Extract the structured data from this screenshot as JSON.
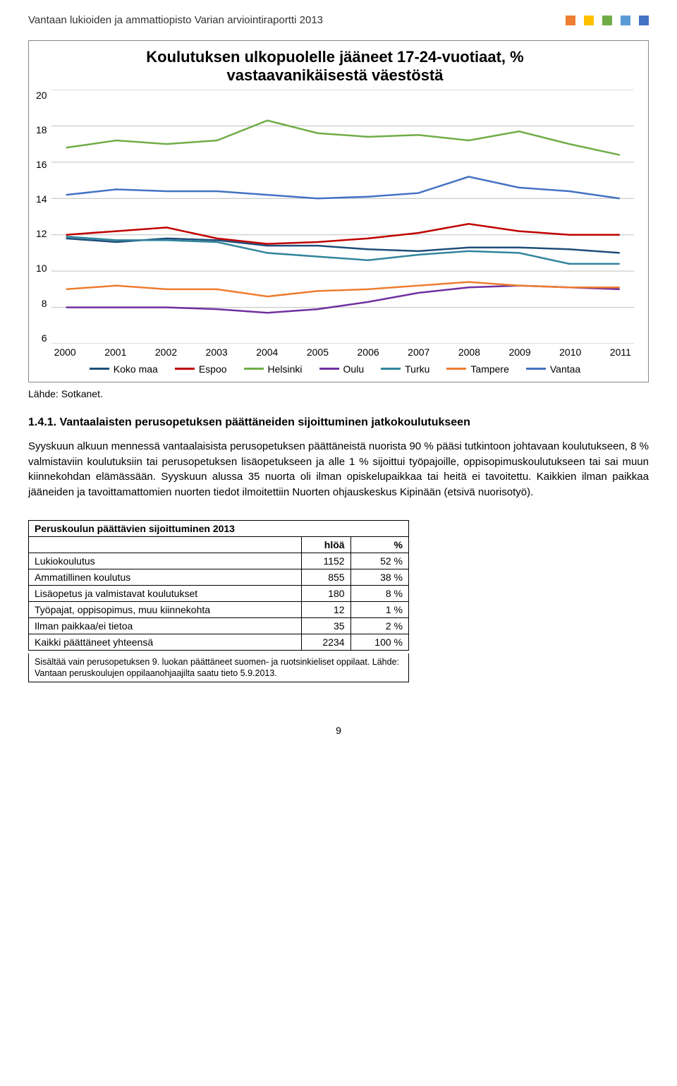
{
  "header": {
    "title": "Vantaan lukioiden ja ammattiopisto Varian arviointiraportti 2013",
    "square_colors": [
      "#ed7d31",
      "#ffc000",
      "#70ad47",
      "#5b9bd5",
      "#4472c4"
    ]
  },
  "chart": {
    "type": "line",
    "title_line1": "Koulutuksen ulkopuolelle jääneet 17-24-vuotiaat, %",
    "title_line2": "vastaavanikäisestä väestöstä",
    "title_fontsize": 22,
    "label_fontsize": 14,
    "background_color": "#ffffff",
    "grid_color": "#bfbfbf",
    "axis_color": "#888888",
    "ylim": [
      6,
      20
    ],
    "ytick_step": 2,
    "yticks": [
      20,
      18,
      16,
      14,
      12,
      10,
      8,
      6
    ],
    "categories": [
      "2000",
      "2001",
      "2002",
      "2003",
      "2004",
      "2005",
      "2006",
      "2007",
      "2008",
      "2009",
      "2010",
      "2011"
    ],
    "line_width": 2.5,
    "series": [
      {
        "name": "Koko maa",
        "color": "#1f4e79",
        "values": [
          11.8,
          11.6,
          11.8,
          11.7,
          11.4,
          11.4,
          11.2,
          11.1,
          11.3,
          11.3,
          11.2,
          11.0
        ]
      },
      {
        "name": "Espoo",
        "color": "#c00000",
        "values": [
          12.0,
          12.2,
          12.4,
          11.8,
          11.5,
          11.6,
          11.8,
          12.1,
          12.6,
          12.2,
          12.0,
          12.0
        ]
      },
      {
        "name": "Helsinki",
        "color": "#70ad47",
        "values": [
          16.8,
          17.2,
          17.0,
          17.2,
          18.3,
          17.6,
          17.4,
          17.5,
          17.2,
          17.7,
          17.0,
          16.4
        ]
      },
      {
        "name": "Oulu",
        "color": "#7030a0",
        "values": [
          8.0,
          8.0,
          8.0,
          7.9,
          7.7,
          7.9,
          8.3,
          8.8,
          9.1,
          9.2,
          9.1,
          9.0
        ]
      },
      {
        "name": "Turku",
        "color": "#31859c",
        "values": [
          11.9,
          11.7,
          11.7,
          11.6,
          11.0,
          10.8,
          10.6,
          10.9,
          11.1,
          11.0,
          10.4,
          10.4
        ]
      },
      {
        "name": "Tampere",
        "color": "#ed7d31",
        "values": [
          9.0,
          9.2,
          9.0,
          9.0,
          8.6,
          8.9,
          9.0,
          9.2,
          9.4,
          9.2,
          9.1,
          9.1
        ]
      },
      {
        "name": "Vantaa",
        "color": "#4472c4",
        "values": [
          14.2,
          14.5,
          14.4,
          14.4,
          14.2,
          14.0,
          14.1,
          14.3,
          15.2,
          14.6,
          14.4,
          14.0
        ]
      }
    ]
  },
  "source_text": "Lähde: Sotkanet.",
  "section": {
    "heading": "1.4.1. Vantaalaisten perusopetuksen päättäneiden sijoittuminen jatkokoulutukseen",
    "paragraph": "Syyskuun alkuun mennessä vantaalaisista perusopetuksen päättäneistä nuorista 90 % pääsi tutkintoon johtavaan koulutukseen, 8 % valmistaviin koulutuksiin tai perusopetuksen lisäopetukseen ja alle 1 % sijoittui työpajoille, oppisopimuskoulutukseen tai sai muun kiinnekohdan elämässään. Syyskuun alussa 35 nuorta oli ilman opiskelupaikkaa tai heitä ei tavoitettu. Kaikkien ilman paikkaa jääneiden ja tavoittamattomien nuorten tiedot ilmoitettiin Nuorten ohjauskeskus Kipinään (etsivä nuorisotyö)."
  },
  "table": {
    "caption": "Peruskoulun päättävien sijoittuminen 2013",
    "columns": [
      "",
      "hlöä",
      "%"
    ],
    "col_align": [
      "left",
      "right",
      "right"
    ],
    "rows": [
      [
        "Lukiokoulutus",
        "1152",
        "52 %"
      ],
      [
        "Ammatillinen koulutus",
        "855",
        "38 %"
      ],
      [
        "Lisäopetus ja valmistavat koulutukset",
        "180",
        "8 %"
      ],
      [
        "Työpajat, oppisopimus, muu kiinnekohta",
        "12",
        "1 %"
      ],
      [
        "Ilman paikkaa/ei tietoa",
        "35",
        "2 %"
      ],
      [
        "Kaikki päättäneet yhteensä",
        "2234",
        "100 %"
      ]
    ],
    "footnote": "Sisältää vain perusopetuksen 9. luokan päättäneet suomen- ja ruotsinkieliset oppilaat. Lähde: Vantaan peruskoulujen oppilaanohjaajilta saatu tieto 5.9.2013."
  },
  "page_number": "9"
}
